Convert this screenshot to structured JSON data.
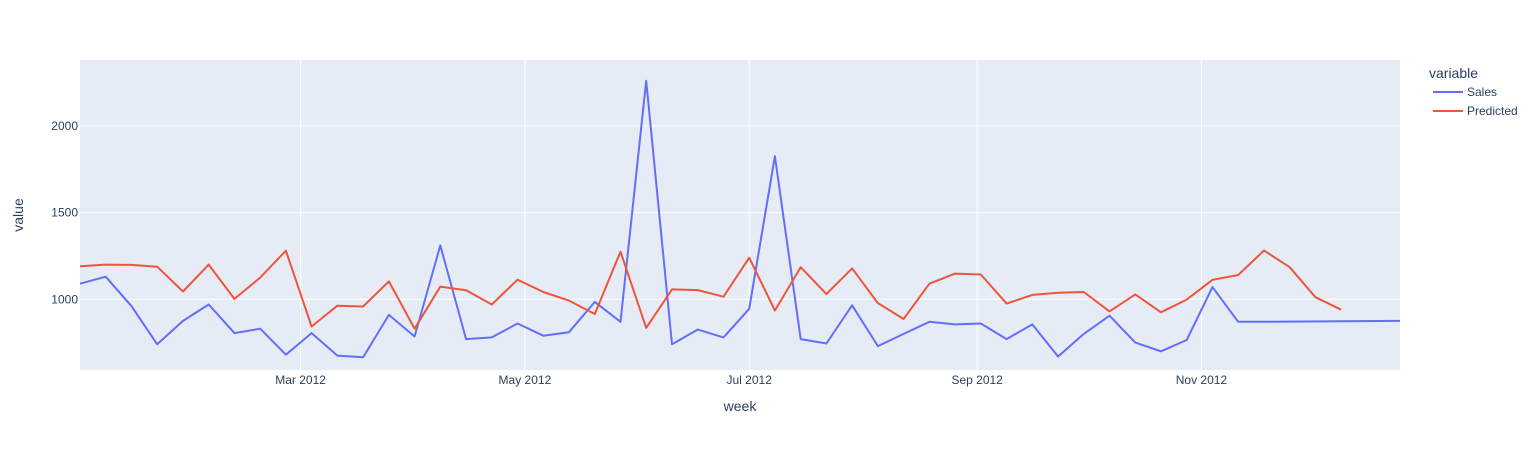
{
  "chart_data": {
    "type": "line",
    "title": "",
    "xlabel": "week",
    "ylabel": "value",
    "ylim": [
      592,
      2380
    ],
    "x_range": [
      "2012-01-01",
      "2012-12-25"
    ],
    "x_ticks": [
      {
        "date": "2012-03-01",
        "label": "Mar 2012"
      },
      {
        "date": "2012-05-01",
        "label": "May 2012"
      },
      {
        "date": "2012-07-01",
        "label": "Jul 2012"
      },
      {
        "date": "2012-09-01",
        "label": "Sep 2012"
      },
      {
        "date": "2012-11-01",
        "label": "Nov 2012"
      }
    ],
    "y_ticks": [
      {
        "value": 1000,
        "label": "1000"
      },
      {
        "value": 1500,
        "label": "1500"
      },
      {
        "value": 2000,
        "label": "2000"
      }
    ],
    "legend_title": "variable",
    "legend_position": "top-right",
    "grid": true,
    "series": [
      {
        "name": "Sales",
        "color": "#636efa",
        "x": [
          "2012-01-01",
          "2012-01-08",
          "2012-01-15",
          "2012-01-22",
          "2012-01-29",
          "2012-02-05",
          "2012-02-12",
          "2012-02-19",
          "2012-02-26",
          "2012-03-04",
          "2012-03-11",
          "2012-03-18",
          "2012-03-25",
          "2012-04-01",
          "2012-04-08",
          "2012-04-15",
          "2012-04-22",
          "2012-04-29",
          "2012-05-06",
          "2012-05-13",
          "2012-05-20",
          "2012-05-27",
          "2012-06-03",
          "2012-06-10",
          "2012-06-17",
          "2012-06-24",
          "2012-07-01",
          "2012-07-08",
          "2012-07-15",
          "2012-07-22",
          "2012-07-29",
          "2012-08-05",
          "2012-08-12",
          "2012-08-19",
          "2012-08-26",
          "2012-09-02",
          "2012-09-09",
          "2012-09-16",
          "2012-09-23",
          "2012-09-30",
          "2012-10-07",
          "2012-10-14",
          "2012-10-21",
          "2012-10-28",
          "2012-11-04",
          "2012-11-11",
          "2012-11-18",
          "2012-12-25"
        ],
        "values": [
          1090,
          1130,
          960,
          740,
          875,
          970,
          805,
          830,
          680,
          805,
          675,
          665,
          910,
          785,
          1310,
          770,
          780,
          860,
          790,
          810,
          985,
          870,
          2260,
          740,
          825,
          780,
          945,
          1825,
          770,
          745,
          965,
          730,
          800,
          870,
          855,
          860,
          770,
          855,
          670,
          800,
          905,
          750,
          700,
          765,
          1070,
          870,
          870,
          875
        ]
      },
      {
        "name": "Predicted",
        "color": "#ef553b",
        "x": [
          "2012-01-01",
          "2012-01-08",
          "2012-01-15",
          "2012-01-22",
          "2012-01-29",
          "2012-02-05",
          "2012-02-12",
          "2012-02-19",
          "2012-02-26",
          "2012-03-04",
          "2012-03-11",
          "2012-03-18",
          "2012-03-25",
          "2012-04-01",
          "2012-04-08",
          "2012-04-15",
          "2012-04-22",
          "2012-04-29",
          "2012-05-06",
          "2012-05-13",
          "2012-05-20",
          "2012-05-27",
          "2012-06-03",
          "2012-06-10",
          "2012-06-17",
          "2012-06-24",
          "2012-07-01",
          "2012-07-08",
          "2012-07-15",
          "2012-07-22",
          "2012-07-29",
          "2012-08-05",
          "2012-08-12",
          "2012-08-19",
          "2012-08-26",
          "2012-09-02",
          "2012-09-09",
          "2012-09-16",
          "2012-09-23",
          "2012-09-30",
          "2012-10-07",
          "2012-10-14",
          "2012-10-21",
          "2012-10-28",
          "2012-11-04",
          "2012-11-11",
          "2012-11-18",
          "2012-11-25",
          "2012-12-02",
          "2012-12-09"
        ],
        "values": [
          1190,
          1200,
          1198,
          1188,
          1045,
          1200,
          1002,
          1125,
          1280,
          843,
          963,
          958,
          1103,
          830,
          1073,
          1052,
          970,
          1113,
          1042,
          992,
          915,
          1275,
          835,
          1057,
          1053,
          1015,
          1240,
          935,
          1185,
          1030,
          1178,
          978,
          886,
          1090,
          1148,
          1143,
          975,
          1025,
          1037,
          1042,
          930,
          1028,
          925,
          998,
          1112,
          1140,
          1281,
          1185,
          1012,
          940
        ]
      }
    ]
  }
}
